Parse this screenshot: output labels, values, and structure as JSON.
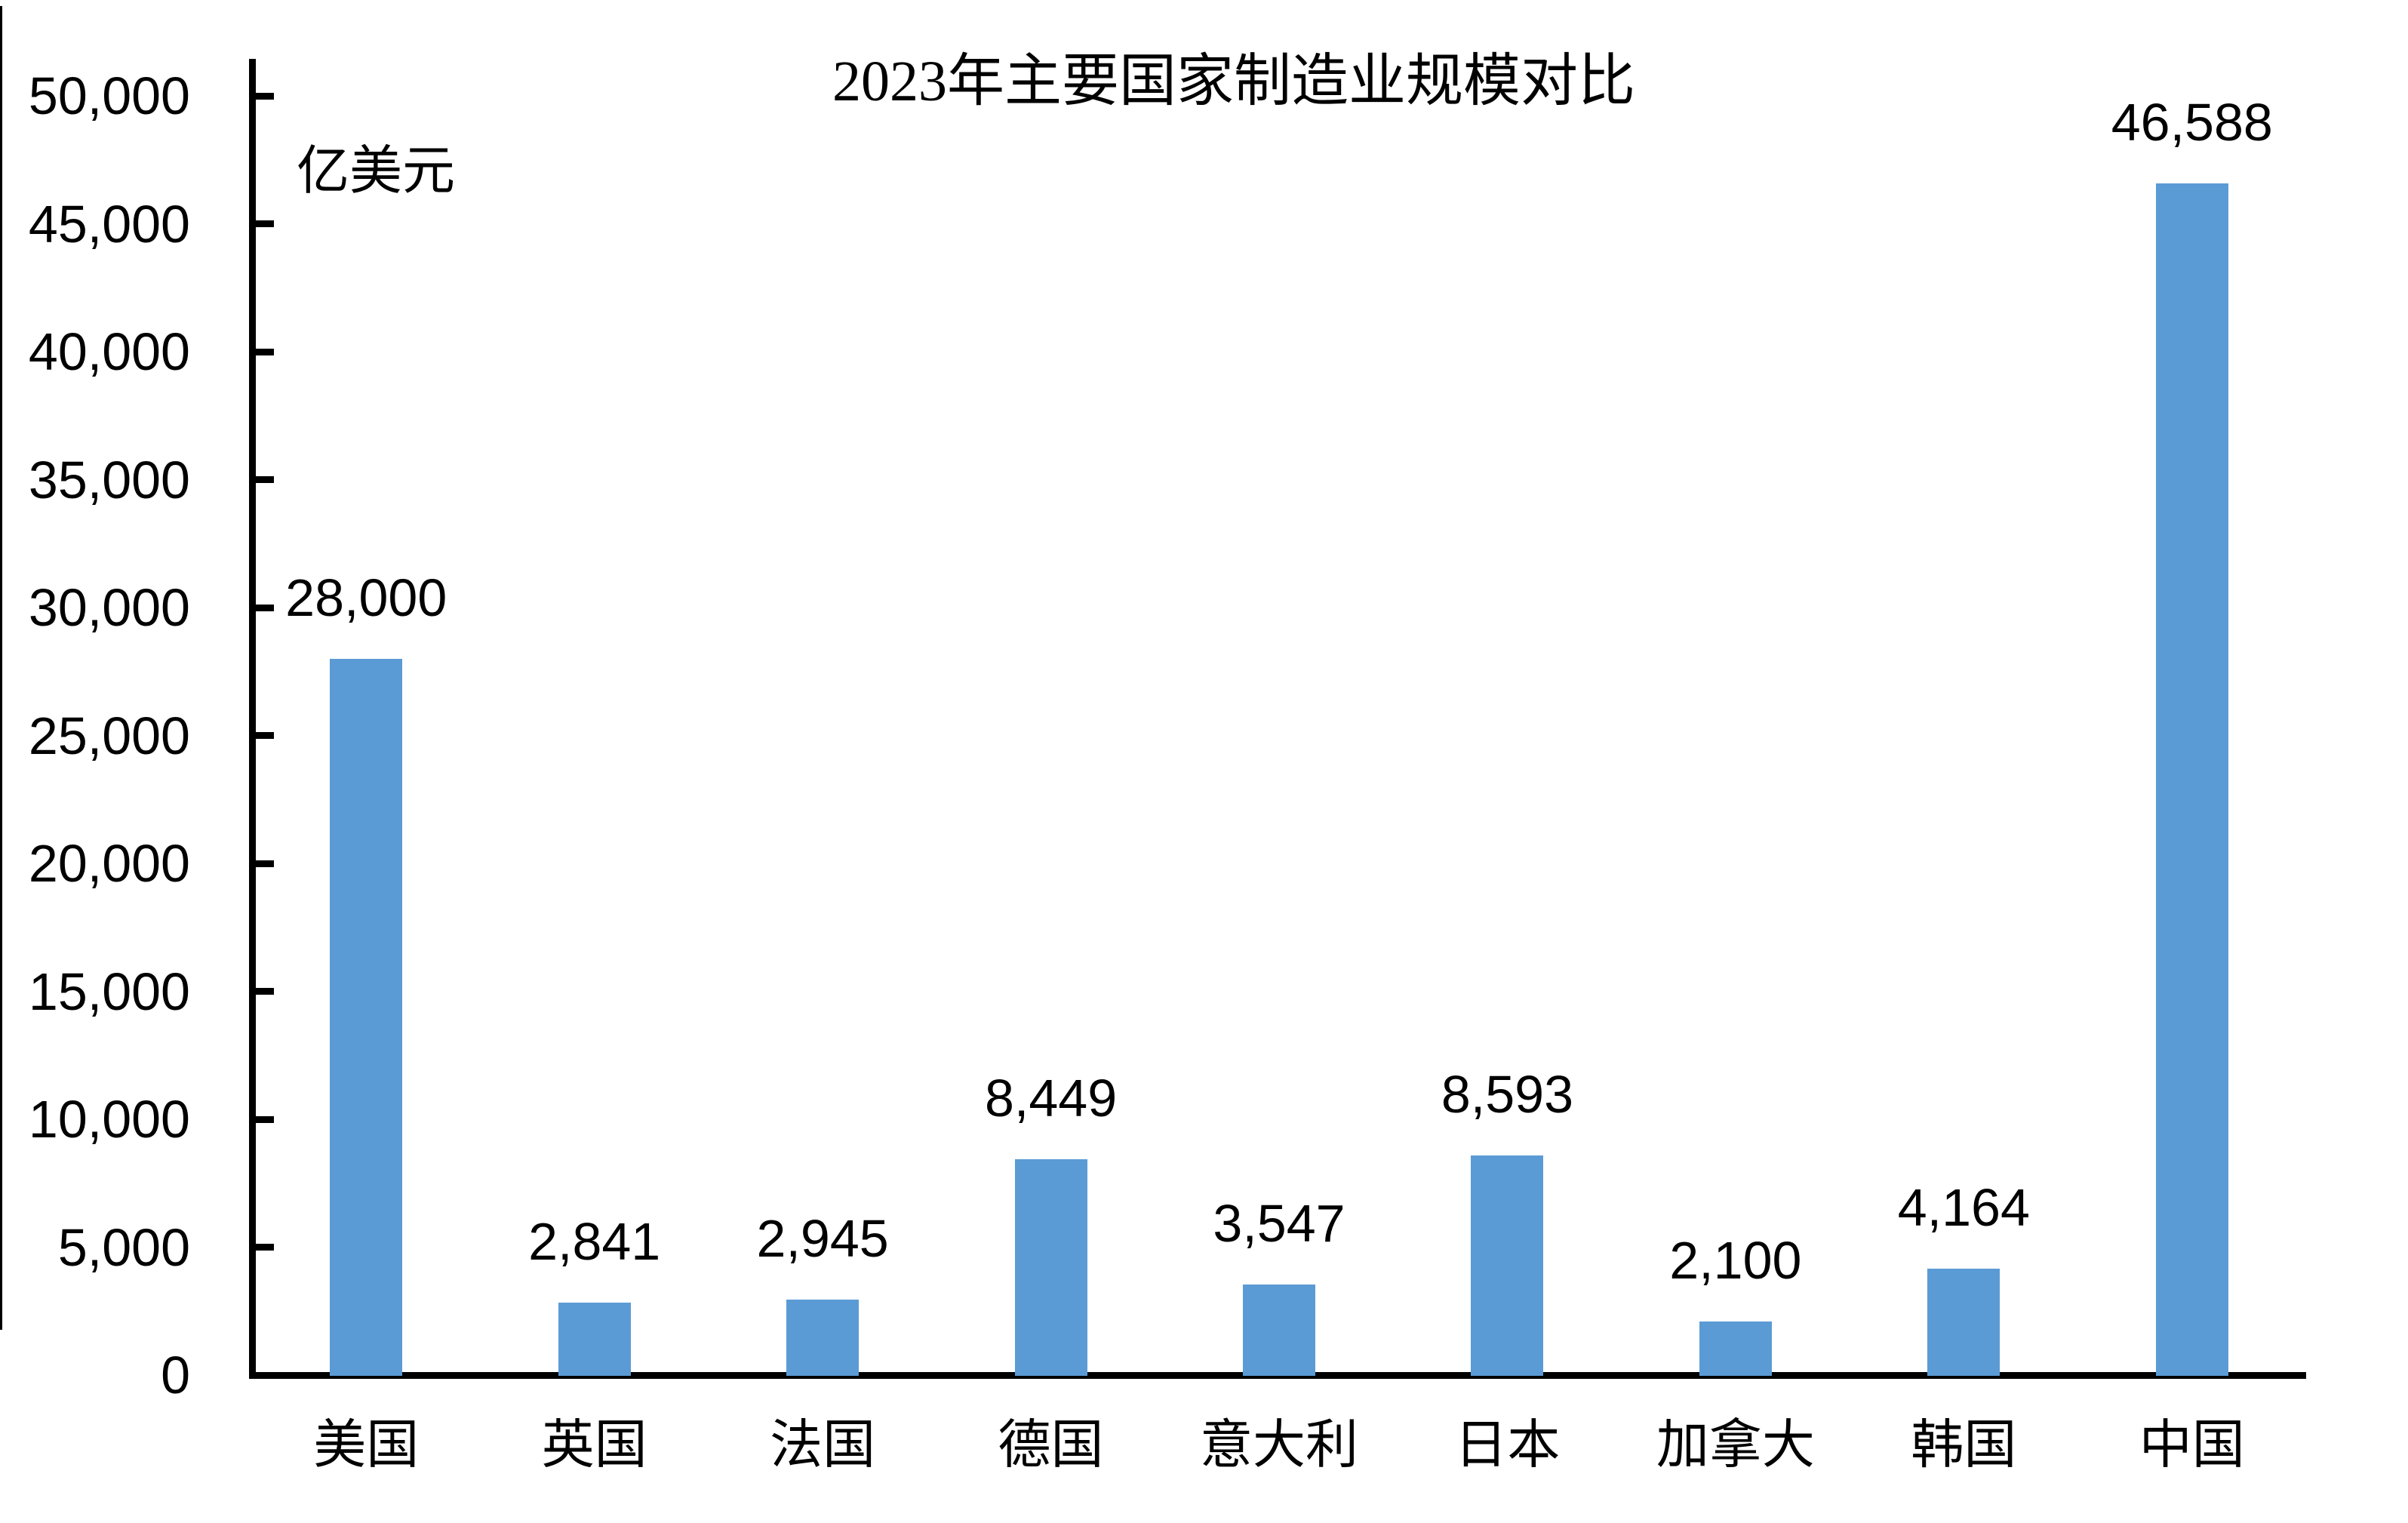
{
  "title": "2023年主要国家制造业规模对比",
  "unit_label": "亿美元",
  "colors": {
    "bar": "#5B9BD5",
    "axis": "#000000",
    "text": "#000000",
    "background": "#FFFFFF"
  },
  "chart_data": {
    "type": "bar",
    "title": "2023年主要国家制造业规模对比",
    "ylabel": "亿美元",
    "xlabel": "",
    "categories": [
      "美国",
      "英国",
      "法国",
      "德国",
      "意大利",
      "日本",
      "加拿大",
      "韩国",
      "中国"
    ],
    "values": [
      28000,
      2841,
      2945,
      8449,
      3547,
      8593,
      2100,
      4164,
      46588
    ],
    "data_labels": [
      "28,000",
      "2,841",
      "2,945",
      "8,449",
      "3,547",
      "8,593",
      "2,100",
      "4,164",
      "46,588"
    ],
    "y_ticks": [
      0,
      5000,
      10000,
      15000,
      20000,
      25000,
      30000,
      35000,
      40000,
      45000,
      50000
    ],
    "y_tick_labels": [
      "0",
      "5,000",
      "10,000",
      "15,000",
      "20,000",
      "25,000",
      "30,000",
      "35,000",
      "40,000",
      "45,000",
      "50,000"
    ],
    "ylim": [
      0,
      50000
    ],
    "grid": false,
    "legend": "none",
    "tick_marks": "inside",
    "data_label_position": "above-bar"
  }
}
